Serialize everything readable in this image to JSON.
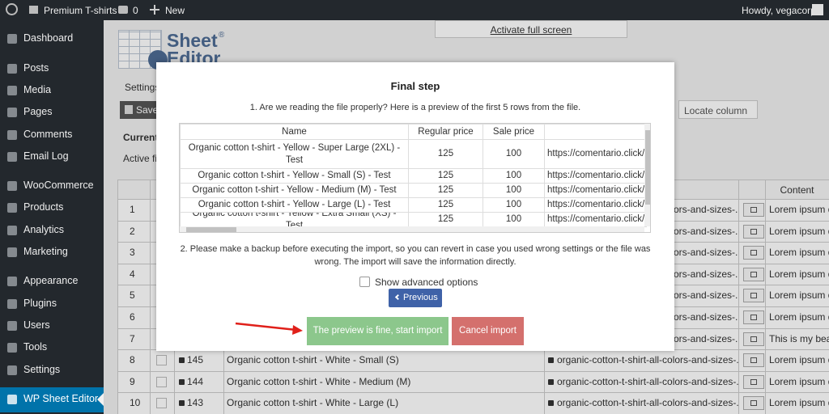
{
  "admin_bar": {
    "site_name": "Premium T-shirts",
    "comments": "0",
    "new": "New",
    "greeting": "Howdy, vegacorp"
  },
  "menu": [
    "Dashboard",
    "Posts",
    "Media",
    "Pages",
    "Comments",
    "Email Log",
    "WooCommerce",
    "Products",
    "Analytics",
    "Marketing",
    "Appearance",
    "Plugins",
    "Users",
    "Tools",
    "Settings",
    "WP Sheet Editor"
  ],
  "editor": {
    "logo_top": "Sheet",
    "logo_bottom": "Editor",
    "logo_mark": "®",
    "fullscreen": "Activate full screen",
    "tab": "Settings",
    "save": "Save",
    "current_label": "Current",
    "active_label": "Active fi",
    "locate_column": "Locate column",
    "content_header": "Content",
    "rows": [
      {
        "number": 1,
        "slug": "ors-and-sizes-...",
        "content": "Lorem ipsum d"
      },
      {
        "number": 2,
        "slug": "ors-and-sizes-...",
        "content": "Lorem ipsum d"
      },
      {
        "number": 3,
        "slug": "ors-and-sizes-...",
        "content": "Lorem ipsum d"
      },
      {
        "number": 4,
        "slug": "ors-and-sizes-...",
        "content": "Lorem ipsum d"
      },
      {
        "number": 5,
        "slug": "ors-and-sizes-...",
        "content": "Lorem ipsum d"
      },
      {
        "number": 6,
        "slug": "ors-and-sizes-...",
        "content": "Lorem ipsum d"
      },
      {
        "number": 7,
        "slug": "ors-and-sizes-...",
        "content": "This is my beau"
      },
      {
        "number": 8,
        "id": 145,
        "title": "Organic cotton t-shirt - White - Small (S)",
        "slug": "organic-cotton-t-shirt-all-colors-and-sizes-...",
        "content": "Lorem ipsum d"
      },
      {
        "number": 9,
        "id": 144,
        "title": "Organic cotton t-shirt - White - Medium (M)",
        "slug": "organic-cotton-t-shirt-all-colors-and-sizes-...",
        "content": "Lorem ipsum d"
      },
      {
        "number": 10,
        "id": 143,
        "title": "Organic cotton t-shirt - White - Large (L)",
        "slug": "organic-cotton-t-shirt-all-colors-and-sizes-...",
        "content": "Lorem ipsum d"
      }
    ]
  },
  "modal": {
    "title": "Final step",
    "step1": "1. Are we reading the file properly? Here is a preview of the first 5 rows from the file.",
    "preview": {
      "header": [
        "Name",
        "Regular price",
        "Sale price"
      ],
      "rows": [
        [
          "Organic cotton t-shirt - Yellow - Super Large (2XL) - Test",
          125,
          100,
          "https://comentario.click/"
        ],
        [
          "Organic cotton t-shirt - Yellow - Small (S) - Test",
          125,
          100,
          "https://comentario.click/"
        ],
        [
          "Organic cotton t-shirt - Yellow - Medium (M) - Test",
          125,
          100,
          "https://comentario.click/"
        ],
        [
          "Organic cotton t-shirt - Yellow - Large (L) - Test",
          125,
          100,
          "https://comentario.click/"
        ],
        [
          "Organic cotton t-shirt - Yellow - Extra Small (XS) - Test",
          125,
          100,
          "https://comentario.click/"
        ]
      ]
    },
    "step2": "2. Please make a backup before executing the import, so you can revert in case you used wrong settings or the file was wrong. The import will save the information directly.",
    "advanced": "Show advanced options",
    "previous": "Previous",
    "confirm": "The preview is fine, start import",
    "cancel": "Cancel import"
  }
}
